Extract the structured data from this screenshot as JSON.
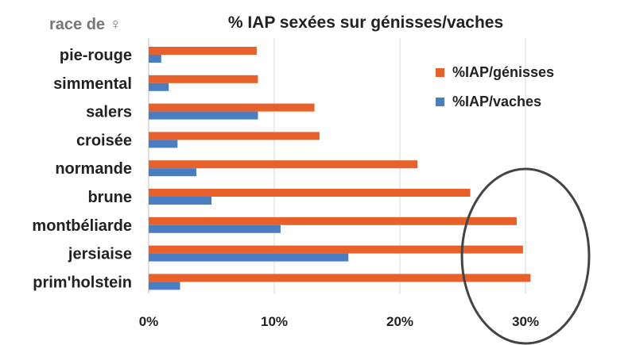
{
  "chart_data": {
    "type": "bar",
    "orientation": "horizontal",
    "title": "% IAP sexées sur génisses/vaches",
    "corner_label": "race de ♀",
    "categories": [
      "pie-rouge",
      "simmental",
      "salers",
      "croisée",
      "normande",
      "brune",
      "montbéliarde",
      "jersiaise",
      "prim'holstein"
    ],
    "series": [
      {
        "name": "%IAP/génisses",
        "color": "#E8602A",
        "values": [
          8.6,
          8.7,
          13.2,
          13.6,
          21.4,
          25.6,
          29.3,
          29.8,
          30.4
        ]
      },
      {
        "name": "%IAP/vaches",
        "color": "#4A7EC3",
        "values": [
          1.0,
          1.6,
          8.7,
          2.3,
          3.8,
          5.0,
          10.5,
          15.9,
          2.5
        ]
      }
    ],
    "xlim": [
      0,
      35
    ],
    "xticks": [
      "0%",
      "10%",
      "20%",
      "30%"
    ],
    "grid": true,
    "legend_position": "top-right"
  }
}
